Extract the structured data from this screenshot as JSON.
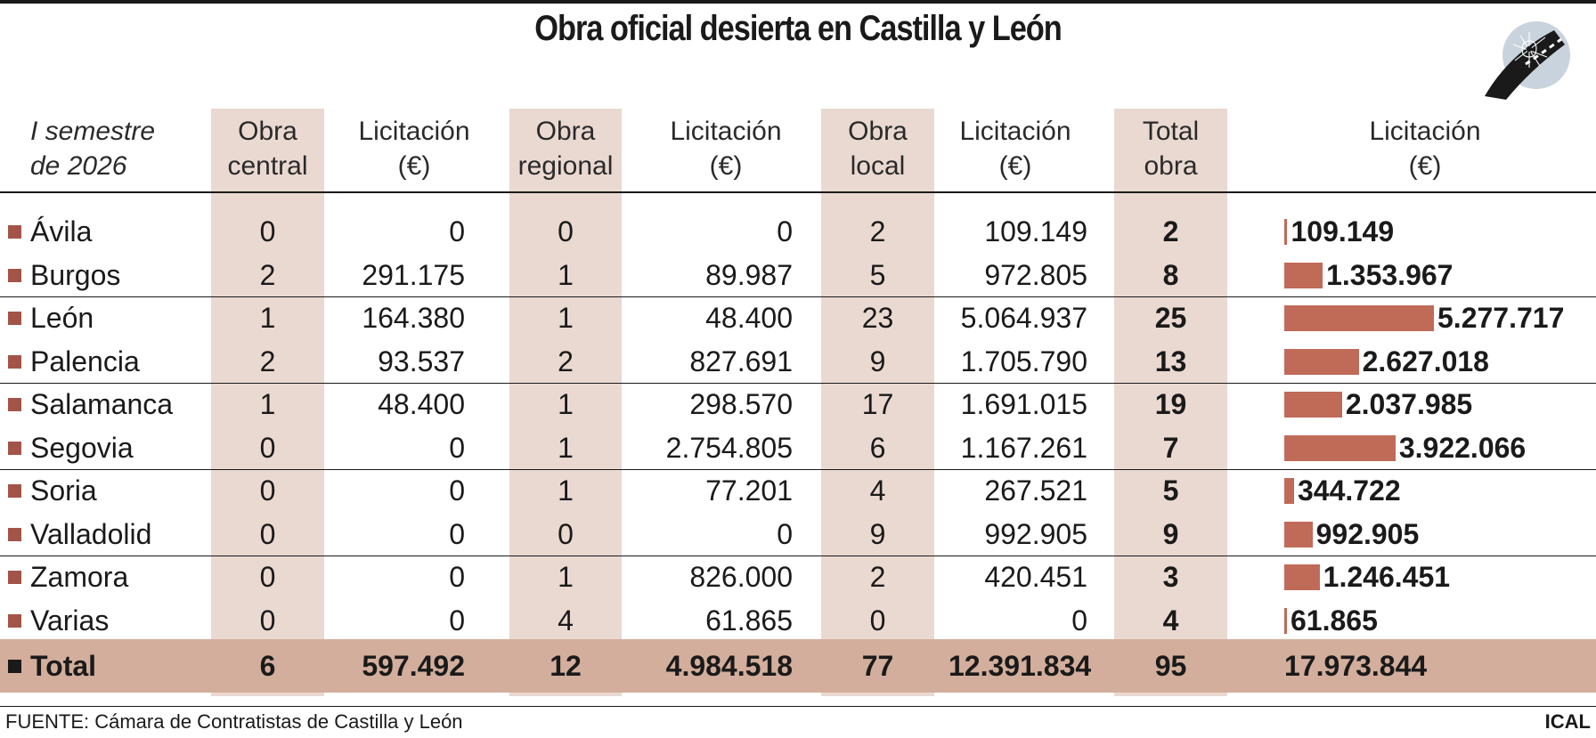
{
  "title": "Obra oficial desierta en Castilla y León",
  "period": [
    "I semestre",
    "de 2026"
  ],
  "headers": [
    [
      "Obra",
      "central"
    ],
    [
      "Licitación",
      "(€)"
    ],
    [
      "Obra",
      "regional"
    ],
    [
      "Licitación",
      "(€)"
    ],
    [
      "Obra",
      "local"
    ],
    [
      "Licitación",
      "(€)"
    ],
    [
      "Total",
      "obra"
    ],
    [
      "Licitación",
      "(€)"
    ]
  ],
  "colors": {
    "band": "#ead9d1",
    "total_row": "#d3ae9c",
    "bar": "#c06a58",
    "square": "#a35448"
  },
  "chart_data": {
    "type": "table",
    "columns": [
      "Obra central",
      "Licitación (€)",
      "Obra regional",
      "Licitación (€)",
      "Obra local",
      "Licitación (€)",
      "Total obra",
      "Licitación (€)"
    ],
    "rows": [
      {
        "name": "Ávila",
        "cells": [
          "0",
          "0",
          "0",
          "0",
          "2",
          "109.149",
          "2"
        ],
        "total": "109.149",
        "total_value": 109149
      },
      {
        "name": "Burgos",
        "cells": [
          "2",
          "291.175",
          "1",
          "89.987",
          "5",
          "972.805",
          "8"
        ],
        "total": "1.353.967",
        "total_value": 1353967
      },
      {
        "name": "León",
        "cells": [
          "1",
          "164.380",
          "1",
          "48.400",
          "23",
          "5.064.937",
          "25"
        ],
        "total": "5.277.717",
        "total_value": 5277717
      },
      {
        "name": "Palencia",
        "cells": [
          "2",
          "93.537",
          "2",
          "827.691",
          "9",
          "1.705.790",
          "13"
        ],
        "total": "2.627.018",
        "total_value": 2627018
      },
      {
        "name": "Salamanca",
        "cells": [
          "1",
          "48.400",
          "1",
          "298.570",
          "17",
          "1.691.015",
          "19"
        ],
        "total": "2.037.985",
        "total_value": 2037985
      },
      {
        "name": "Segovia",
        "cells": [
          "0",
          "0",
          "1",
          "2.754.805",
          "6",
          "1.167.261",
          "7"
        ],
        "total": "3.922.066",
        "total_value": 3922066
      },
      {
        "name": "Soria",
        "cells": [
          "0",
          "0",
          "1",
          "77.201",
          "4",
          "267.521",
          "5"
        ],
        "total": "344.722",
        "total_value": 344722
      },
      {
        "name": "Valladolid",
        "cells": [
          "0",
          "0",
          "0",
          "0",
          "9",
          "992.905",
          "9"
        ],
        "total": "992.905",
        "total_value": 992905
      },
      {
        "name": "Zamora",
        "cells": [
          "0",
          "0",
          "1",
          "826.000",
          "2",
          "420.451",
          "3"
        ],
        "total": "1.246.451",
        "total_value": 1246451
      },
      {
        "name": "Varias",
        "cells": [
          "0",
          "0",
          "4",
          "61.865",
          "0",
          "0",
          "4"
        ],
        "total": "61.865",
        "total_value": 61865
      }
    ],
    "total_row": {
      "name": "Total",
      "cells": [
        "6",
        "597.492",
        "12",
        "4.984.518",
        "77",
        "12.391.834",
        "95"
      ],
      "total": "17.973.844"
    }
  },
  "footer": {
    "source": "FUENTE: Cámara de Contratistas de Castilla y León",
    "agency": "ICAL"
  }
}
